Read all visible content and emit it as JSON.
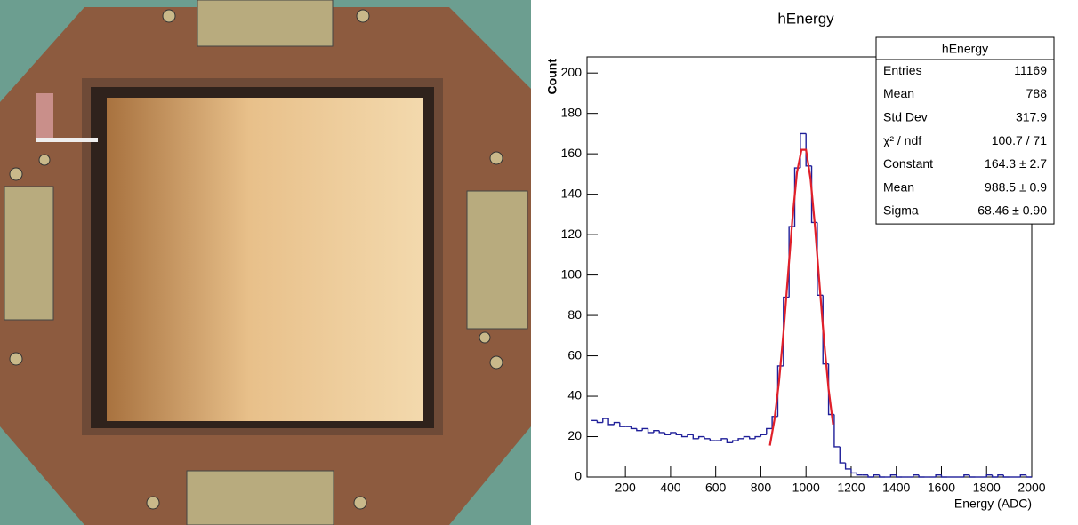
{
  "chart_data": {
    "type": "histogram",
    "title": "hEnergy",
    "x_label": "Energy (ADC)",
    "y_label": "Count",
    "bins": [
      50,
      75,
      100,
      125,
      150,
      175,
      200,
      225,
      250,
      275,
      300,
      325,
      350,
      375,
      400,
      425,
      450,
      475,
      500,
      525,
      550,
      575,
      600,
      625,
      650,
      675,
      700,
      725,
      750,
      775,
      800,
      825,
      850,
      875,
      900,
      925,
      950,
      975,
      1000,
      1025,
      1050,
      1075,
      1100,
      1125,
      1150,
      1175,
      1200,
      1225,
      1250,
      1275,
      1300,
      1325,
      1350,
      1375,
      1400,
      1425,
      1450,
      1475,
      1500,
      1525,
      1550,
      1575,
      1600,
      1625,
      1650,
      1675,
      1700,
      1725,
      1750,
      1775,
      1800,
      1825,
      1850,
      1875,
      1900,
      1925,
      1950,
      1975,
      2000
    ],
    "values": [
      28,
      27,
      29,
      26,
      27,
      25,
      25,
      24,
      23,
      24,
      22,
      23,
      22,
      21,
      22,
      21,
      20,
      21,
      19,
      20,
      19,
      18,
      18,
      19,
      17,
      18,
      19,
      20,
      19,
      20,
      21,
      24,
      30,
      55,
      89,
      124,
      153,
      170,
      154,
      126,
      90,
      56,
      31,
      15,
      7,
      4,
      2,
      1,
      1,
      0,
      1,
      0,
      0,
      1,
      0,
      0,
      0,
      1,
      0,
      0,
      0,
      1,
      0,
      0,
      0,
      0,
      1,
      0,
      0,
      0,
      1,
      0,
      1,
      0,
      0,
      0,
      1,
      0
    ],
    "color": "#1f1f99",
    "fit": {
      "color": "#e0202a",
      "x": [
        840,
        860,
        880,
        900,
        920,
        940,
        960,
        980,
        1000,
        1020,
        1040,
        1060,
        1080,
        1100,
        1120
      ],
      "values": [
        15.6,
        28.2,
        46.8,
        71.2,
        99.6,
        127.8,
        150.7,
        162.0,
        162.0,
        147.8,
        123.8,
        95.2,
        67.3,
        43.6,
        26.0
      ]
    },
    "xlim": [
      30,
      2000
    ],
    "ylim": [
      0,
      208
    ],
    "xticks": [
      200,
      400,
      600,
      800,
      1000,
      1200,
      1400,
      1600,
      1800,
      2000
    ],
    "yticks": [
      0,
      20,
      40,
      60,
      80,
      100,
      120,
      140,
      160,
      180,
      200
    ],
    "stats": {
      "title": "hEnergy",
      "rows": [
        [
          "Entries",
          "11169"
        ],
        [
          "Mean",
          "788"
        ],
        [
          "Std Dev",
          "317.9"
        ],
        [
          "χ² / ndf",
          "100.7 / 71"
        ],
        [
          "Constant",
          "164.3 ± 2.7"
        ],
        [
          "Mean",
          "988.5 ± 0.9"
        ],
        [
          "Sigma",
          "68.46 ± 0.90"
        ]
      ]
    }
  }
}
